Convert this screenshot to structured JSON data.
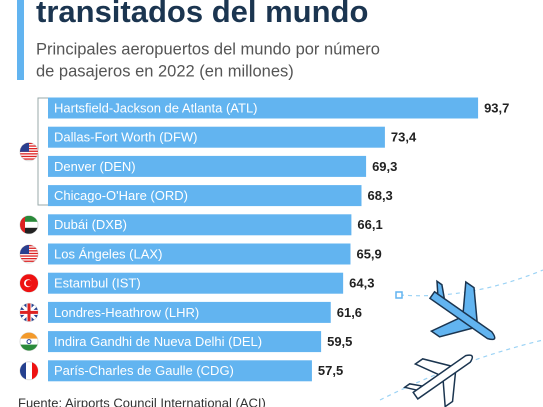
{
  "chart_data": {
    "type": "bar",
    "orientation": "horizontal",
    "title": "transitados del mundo",
    "subtitle": "Principales aeropuertos del mundo por número de pasajeros en 2022 (en millones)",
    "source": "Fuente: Airports Council International (ACI)",
    "categories": [
      "Hartsfield-Jackson de Atlanta (ATL)",
      "Dallas-Fort Worth (DFW)",
      "Denver (DEN)",
      "Chicago-O'Hare (ORD)",
      "Dubái (DXB)",
      "Los Ángeles (LAX)",
      "Estambul (IST)",
      "Londres-Heathrow (LHR)",
      "Indira Gandhi de Nueva Delhi (DEL)",
      "París-Charles de Gaulle (CDG)"
    ],
    "values": [
      93.7,
      73.4,
      69.3,
      68.3,
      66.1,
      65.9,
      64.3,
      61.6,
      59.5,
      57.5
    ],
    "value_labels": [
      "93,7",
      "73,4",
      "69,3",
      "68,3",
      "66,1",
      "65,9",
      "64,3",
      "61,6",
      "59,5",
      "57,5"
    ],
    "color": "#62b4f0"
  }
}
